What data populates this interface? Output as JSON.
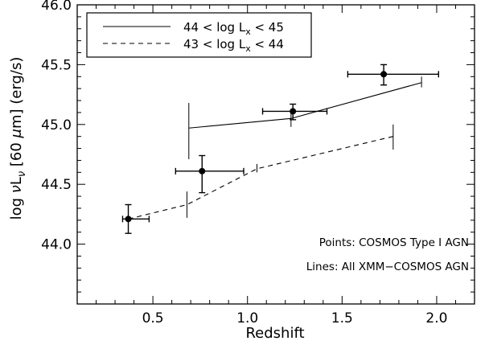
{
  "chart_data": {
    "type": "scatter",
    "title": "",
    "xlabel": "Redshift",
    "ylabel_parts": {
      "pre": "log ",
      "nu": "ν",
      "L": "L",
      "sub": "ν",
      "mid": " [60 ",
      "mu": "μ",
      "post": "m] (erg/s)"
    },
    "xlim": [
      0.1,
      2.2
    ],
    "ylim": [
      43.5,
      46.0
    ],
    "x_ticks": [
      "0.5",
      "1.0",
      "1.5",
      "2.0"
    ],
    "x_tick_values": [
      0.5,
      1.0,
      1.5,
      2.0
    ],
    "y_ticks": [
      "44.0",
      "44.5",
      "45.0",
      "45.5",
      "46.0"
    ],
    "y_tick_values": [
      44.0,
      44.5,
      45.0,
      45.5,
      46.0
    ],
    "legend": {
      "placement": "top-left",
      "entries": [
        {
          "style": "solid",
          "pre": "44 < log L",
          "sub": "x",
          "post": " < 45"
        },
        {
          "style": "dashed",
          "pre": "43 < log L",
          "sub": "x",
          "post": " < 44"
        }
      ]
    },
    "points": {
      "name": "COSMOS Type I AGN",
      "data": [
        {
          "x": 0.37,
          "y": 44.21,
          "xerr": [
            0.34,
            0.48
          ],
          "yerr": [
            44.09,
            44.33
          ]
        },
        {
          "x": 0.76,
          "y": 44.61,
          "xerr": [
            0.62,
            0.98
          ],
          "yerr": [
            44.43,
            44.74
          ]
        },
        {
          "x": 1.24,
          "y": 45.11,
          "xerr": [
            1.08,
            1.42
          ],
          "yerr": [
            45.04,
            45.17
          ]
        },
        {
          "x": 1.72,
          "y": 45.42,
          "xerr": [
            1.53,
            2.01
          ],
          "yerr": [
            45.33,
            45.5
          ]
        }
      ]
    },
    "series": [
      {
        "style": "solid",
        "x": [
          0.69,
          1.23,
          1.92
        ],
        "y": [
          44.97,
          45.05,
          45.35
        ],
        "err_bars": [
          [
            44.71,
            45.18
          ],
          [
            44.98,
            45.13
          ],
          [
            45.31,
            45.4
          ]
        ]
      },
      {
        "style": "dashed",
        "x": [
          0.37,
          0.68,
          1.05,
          1.77
        ],
        "y": [
          44.21,
          44.33,
          44.63,
          44.9
        ],
        "err_bars": [
          [
            44.16,
            44.26
          ],
          [
            44.22,
            44.44
          ],
          [
            44.6,
            44.67
          ],
          [
            44.79,
            45.0
          ]
        ]
      }
    ],
    "annotations": [
      "Points: COSMOS Type I AGN",
      "Lines: All XMM−COSMOS AGN"
    ]
  }
}
